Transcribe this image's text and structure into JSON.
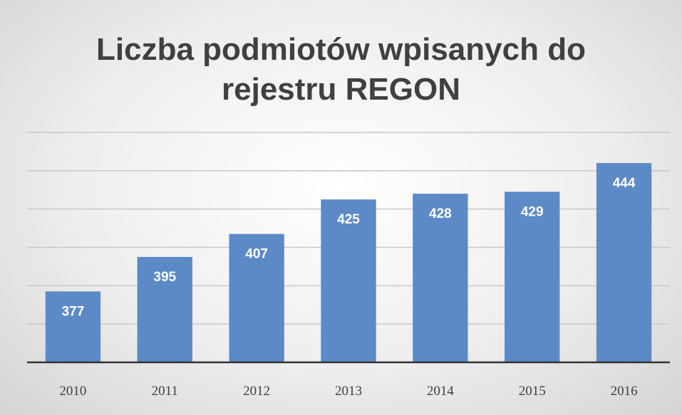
{
  "chart_data": {
    "type": "bar",
    "title": "Liczba podmiotów wpisanych do rejestru REGON",
    "categories": [
      "2010",
      "2011",
      "2012",
      "2013",
      "2014",
      "2015",
      "2016"
    ],
    "values": [
      377,
      395,
      407,
      425,
      428,
      429,
      444
    ],
    "color": "#5b8ac6",
    "ylim": [
      340,
      460
    ],
    "yticks": [
      340,
      360,
      380,
      400,
      420,
      440,
      460
    ],
    "grid": true,
    "ytick_labels": false
  }
}
